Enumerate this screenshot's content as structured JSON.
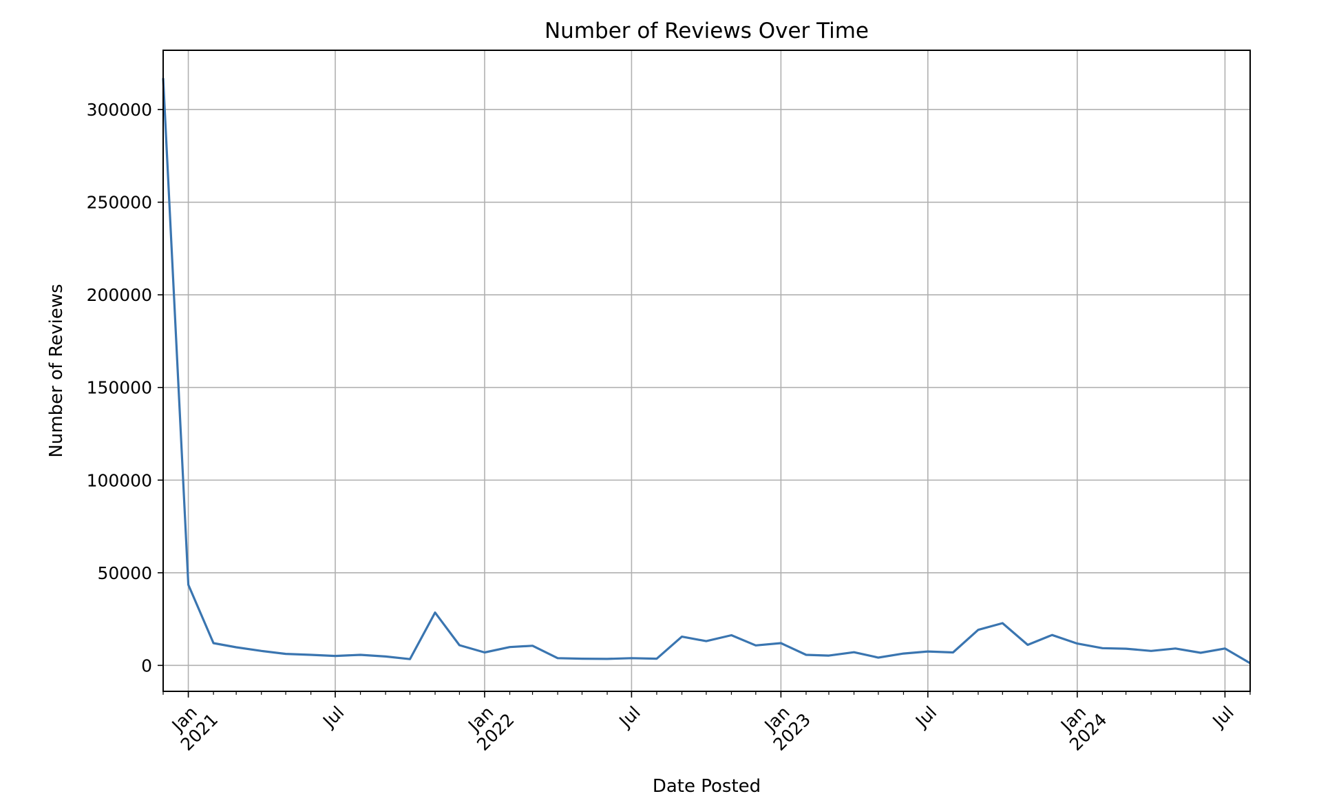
{
  "chart_data": {
    "type": "line",
    "title": "Number of Reviews Over Time",
    "xlabel": "Date Posted",
    "ylabel": "Number of Reviews",
    "grid": true,
    "colors": {
      "line": "#3a75b0",
      "grid": "#b0b0b0",
      "axes": "#000000"
    },
    "xlim": [
      "2020-12-01",
      "2024-08-01"
    ],
    "ylim": [
      -14000,
      332000
    ],
    "y_ticks": [
      0,
      50000,
      100000,
      150000,
      200000,
      250000,
      300000
    ],
    "y_tick_labels": [
      "0",
      "50000",
      "100000",
      "150000",
      "200000",
      "250000",
      "300000"
    ],
    "x_major_ticks": [
      {
        "date": "2021-01-01",
        "label": "Jan\n2021"
      },
      {
        "date": "2021-07-01",
        "label": "Jul"
      },
      {
        "date": "2022-01-01",
        "label": "Jan\n2022"
      },
      {
        "date": "2022-07-01",
        "label": "Jul"
      },
      {
        "date": "2023-01-01",
        "label": "Jan\n2023"
      },
      {
        "date": "2023-07-01",
        "label": "Jul"
      },
      {
        "date": "2024-01-01",
        "label": "Jan\n2024"
      },
      {
        "date": "2024-07-01",
        "label": "Jul"
      }
    ],
    "series": [
      {
        "x": [
          "2020-12-01",
          "2021-01-01",
          "2021-02-01",
          "2021-03-01",
          "2021-04-01",
          "2021-05-01",
          "2021-06-01",
          "2021-07-01",
          "2021-08-01",
          "2021-09-01",
          "2021-10-01",
          "2021-11-01",
          "2021-12-01",
          "2022-01-01",
          "2022-02-01",
          "2022-03-01",
          "2022-04-01",
          "2022-05-01",
          "2022-06-01",
          "2022-07-01",
          "2022-08-01",
          "2022-09-01",
          "2022-10-01",
          "2022-11-01",
          "2022-12-01",
          "2023-01-01",
          "2023-02-01",
          "2023-03-01",
          "2023-04-01",
          "2023-05-01",
          "2023-06-01",
          "2023-07-01",
          "2023-08-01",
          "2023-09-01",
          "2023-10-01",
          "2023-11-01",
          "2023-12-01",
          "2024-01-01",
          "2024-02-01",
          "2024-03-01",
          "2024-04-01",
          "2024-05-01",
          "2024-06-01",
          "2024-07-01",
          "2024-08-01"
        ],
        "values": [
          317000,
          43500,
          12000,
          9800,
          7800,
          6200,
          5700,
          5100,
          5700,
          4800,
          3400,
          28500,
          10900,
          7000,
          9900,
          10600,
          3900,
          3600,
          3500,
          3900,
          3600,
          15500,
          13100,
          16300,
          10800,
          12000,
          5700,
          5300,
          7100,
          4200,
          6400,
          7500,
          7000,
          19200,
          22800,
          11100,
          16400,
          11800,
          9300,
          9000,
          7800,
          9100,
          6800,
          9100,
          1200
        ]
      }
    ]
  }
}
